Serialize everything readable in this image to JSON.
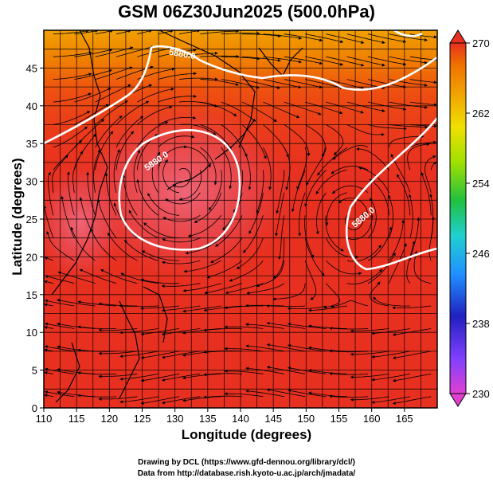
{
  "title": "GSM 06Z30Jun2025 (500.0hPa)",
  "x_axis": {
    "label": "Longitude (degrees)",
    "range": [
      110,
      170
    ],
    "ticks": [
      110,
      115,
      120,
      125,
      130,
      135,
      140,
      145,
      150,
      155,
      160,
      165
    ]
  },
  "y_axis": {
    "label": "Latitude  (degrees)",
    "range": [
      0,
      50
    ],
    "ticks": [
      0,
      5,
      10,
      15,
      20,
      25,
      30,
      35,
      40,
      45
    ]
  },
  "colorbar": {
    "range": [
      230,
      270
    ],
    "ticks": [
      230,
      238,
      246,
      254,
      262,
      270
    ],
    "colors": [
      "#e040d0",
      "#8040ff",
      "#2020c0",
      "#2090ff",
      "#20d0d0",
      "#20c040",
      "#a0e000",
      "#f0e000",
      "#f0a000",
      "#f07000",
      "#e83020"
    ]
  },
  "contours": [
    {
      "label": "5880.0"
    },
    {
      "label": "5880.0"
    },
    {
      "label": "5880.0"
    }
  ],
  "credits": {
    "line1": "Drawing by DCL (https://www.gfd-dennou.org/library/dcl/)",
    "line2": "Data from http://database.rish.kyoto-u.ac.jp/arch/jmadata/"
  }
}
